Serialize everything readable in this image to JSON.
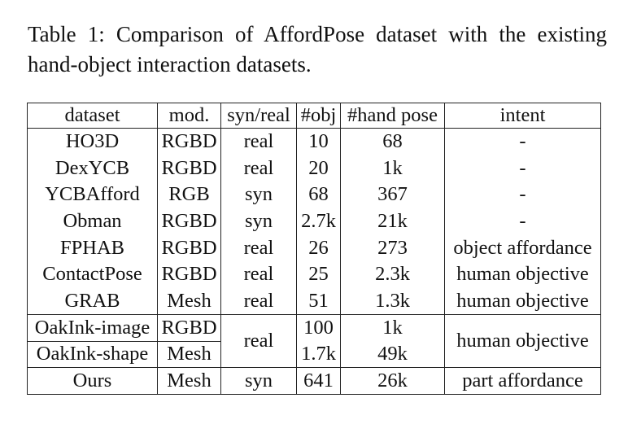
{
  "caption": "Table 1: Comparison of AffordPose dataset with the existing hand-object interaction datasets.",
  "headers": [
    "dataset",
    "mod.",
    "syn/real",
    "#obj",
    "#hand pose",
    "intent"
  ],
  "rows": [
    {
      "dataset": "HO3D",
      "mod": "RGBD",
      "syn_real": "real",
      "obj": "10",
      "hand_pose": "68",
      "intent": "-"
    },
    {
      "dataset": "DexYCB",
      "mod": "RGBD",
      "syn_real": "real",
      "obj": "20",
      "hand_pose": "1k",
      "intent": "-"
    },
    {
      "dataset": "YCBAfford",
      "mod": "RGB",
      "syn_real": "syn",
      "obj": "68",
      "hand_pose": "367",
      "intent": "-"
    },
    {
      "dataset": "Obman",
      "mod": "RGBD",
      "syn_real": "syn",
      "obj": "2.7k",
      "hand_pose": "21k",
      "intent": "-"
    },
    {
      "dataset": "FPHAB",
      "mod": "RGBD",
      "syn_real": "real",
      "obj": "26",
      "hand_pose": "273",
      "intent": "object affordance"
    },
    {
      "dataset": "ContactPose",
      "mod": "RGBD",
      "syn_real": "real",
      "obj": "25",
      "hand_pose": "2.3k",
      "intent": "human objective"
    },
    {
      "dataset": "GRAB",
      "mod": "Mesh",
      "syn_real": "real",
      "obj": "51",
      "hand_pose": "1.3k",
      "intent": "human objective"
    }
  ],
  "oakink": {
    "syn_real": "real",
    "intent": "human objective",
    "rows": [
      {
        "dataset": "OakInk-image",
        "mod": "RGBD",
        "obj": "100",
        "hand_pose": "1k"
      },
      {
        "dataset": "OakInk-shape",
        "mod": "Mesh",
        "obj": "1.7k",
        "hand_pose": "49k"
      }
    ]
  },
  "ours": {
    "dataset": "Ours",
    "mod": "Mesh",
    "syn_real": "syn",
    "obj": "641",
    "hand_pose": "26k",
    "intent": "part affordance"
  }
}
